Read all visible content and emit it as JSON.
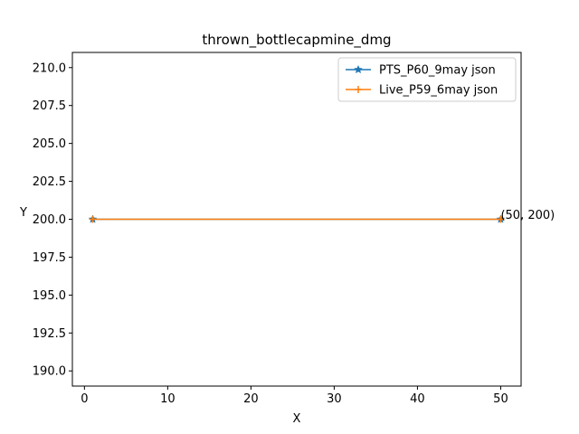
{
  "chart_data": {
    "type": "line",
    "title": "thrown_bottlecapmine_dmg",
    "xlabel": "X",
    "ylabel": "Y",
    "xlim": [
      -1.45,
      52.45
    ],
    "ylim": [
      189,
      211
    ],
    "xticks": [
      0,
      10,
      20,
      30,
      40,
      50
    ],
    "yticks": [
      190.0,
      192.5,
      195.0,
      197.5,
      200.0,
      202.5,
      205.0,
      207.5,
      210.0
    ],
    "ytick_labels": [
      "190.0",
      "192.5",
      "195.0",
      "197.5",
      "200.0",
      "202.5",
      "205.0",
      "207.5",
      "210.0"
    ],
    "grid": false,
    "legend_position": "top-right",
    "series": [
      {
        "name": "PTS_P60_9may json",
        "color": "#1f77b4",
        "marker": "star",
        "x": [
          1,
          50
        ],
        "y": [
          200,
          200
        ]
      },
      {
        "name": "Live_P59_6may json",
        "color": "#ff7f0e",
        "marker": "plus",
        "x": [
          1,
          50
        ],
        "y": [
          200,
          200
        ]
      }
    ],
    "annotations": [
      {
        "text": "(50, 200)",
        "x": 50,
        "y": 200
      }
    ]
  }
}
